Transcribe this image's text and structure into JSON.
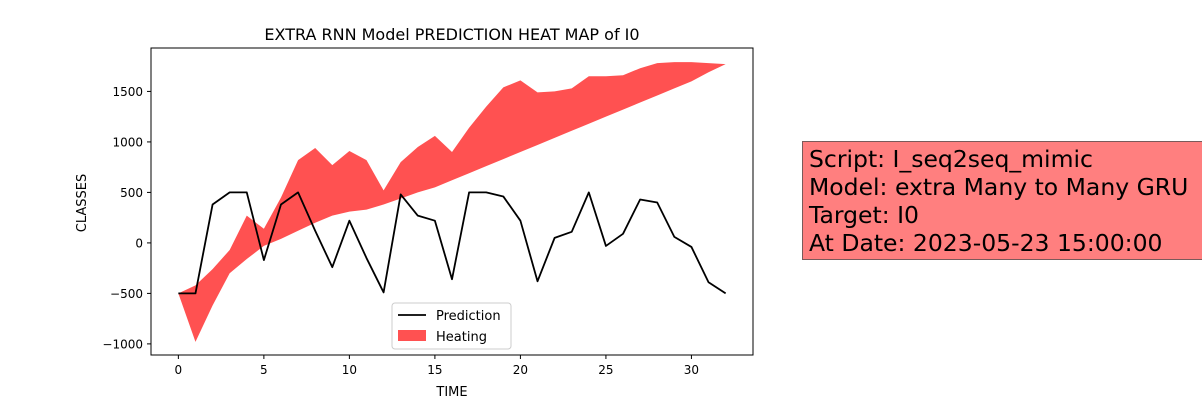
{
  "chart_data": {
    "type": "line",
    "title": "EXTRA RNN Model PREDICTION HEAT MAP of I0",
    "xlabel": "TIME",
    "ylabel": "CLASSES",
    "xlim": [
      -1.6,
      33.6
    ],
    "ylim": [
      -1110,
      1930
    ],
    "x_ticks": [
      0,
      5,
      10,
      15,
      20,
      25,
      30
    ],
    "y_ticks": [
      -1000,
      -500,
      0,
      500,
      1000,
      1500
    ],
    "grid": false,
    "legend_position": "lower-center",
    "x": [
      0,
      1,
      2,
      3,
      4,
      5,
      6,
      7,
      8,
      9,
      10,
      11,
      12,
      13,
      14,
      15,
      16,
      17,
      18,
      19,
      20,
      21,
      22,
      23,
      24,
      25,
      26,
      27,
      28,
      29,
      30,
      31,
      32
    ],
    "series": [
      {
        "name": "Prediction",
        "kind": "line",
        "color": "#000000",
        "values": [
          -500,
          -500,
          380,
          500,
          500,
          -170,
          380,
          500,
          120,
          -240,
          220,
          -150,
          -490,
          480,
          270,
          220,
          -360,
          500,
          500,
          460,
          220,
          -380,
          50,
          110,
          500,
          -30,
          90,
          430,
          400,
          60,
          -40,
          -390,
          -500
        ]
      },
      {
        "name": "Heating",
        "kind": "fill_between",
        "color": "#ff3333",
        "upper": [
          -500,
          -420,
          -260,
          -70,
          270,
          140,
          450,
          820,
          940,
          770,
          910,
          820,
          520,
          800,
          950,
          1060,
          900,
          1140,
          1350,
          1540,
          1610,
          1490,
          1500,
          1530,
          1650,
          1650,
          1660,
          1730,
          1780,
          1790,
          1790,
          1780,
          1770
        ],
        "lower": [
          -500,
          -980,
          -620,
          -300,
          -160,
          -30,
          40,
          120,
          200,
          270,
          310,
          330,
          380,
          440,
          500,
          550,
          620,
          690,
          760,
          830,
          900,
          970,
          1040,
          1110,
          1180,
          1250,
          1320,
          1390,
          1460,
          1530,
          1600,
          1690,
          1770
        ]
      }
    ]
  },
  "info_box": {
    "script": "Script: I_seq2seq_mimic",
    "model": "Model: extra Many to Many GRU",
    "target": "Target: I0",
    "date": "At Date: 2023-05-23 15:00:00",
    "background": "#ff7f7f"
  }
}
